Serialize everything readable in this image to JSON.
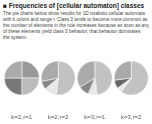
{
  "title": "■ Frequencies of [cellular automaton] classes",
  "subtitle": "The pie charts below show results for 1D totalistic cellular automata\nwith k colors and range r. Class 3 tends to become more common as\nthe number of elements in the rule increases because as soon as any\nof these elements yield class 3 behavior, that behavior dominates\nthe system.",
  "chart_data": [
    {
      "type": "pie",
      "title": "k=2,r=1",
      "values": [
        0.25,
        0.25,
        0.25,
        0.25
      ],
      "colors": [
        "#999999",
        "#bbbbbb",
        "#777777",
        "#aaaaaa"
      ]
    },
    {
      "type": "pie",
      "title": "k=2,r=2",
      "values": [
        0.52,
        0.12,
        0.08,
        0.28
      ],
      "colors": [
        "#c2c2c2",
        "#e8e8e8",
        "#888888",
        "#aaaaaa"
      ]
    },
    {
      "type": "pie",
      "title": "k=3,r=1",
      "values": [
        0.48,
        0.08,
        0.1,
        0.34
      ],
      "colors": [
        "#c2c2c2",
        "#e8e8e8",
        "#888888",
        "#aaaaaa"
      ]
    },
    {
      "type": "pie",
      "title": "k=3,r=2",
      "values": [
        0.6,
        0.05,
        0.08,
        0.27
      ],
      "colors": [
        "#c2c2c2",
        "#e8e8e8",
        "#666666",
        "#aaaaaa"
      ]
    }
  ]
}
